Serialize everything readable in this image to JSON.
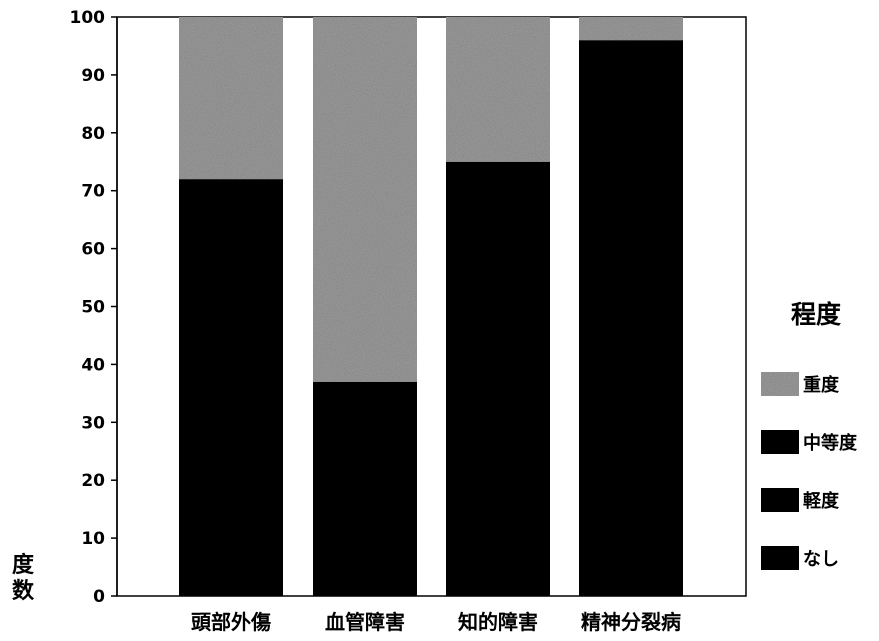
{
  "chart_data": {
    "type": "bar",
    "stacked": true,
    "categories": [
      "頭部外傷",
      "血管障害",
      "知的障害",
      "精神分裂病"
    ],
    "series": [
      {
        "name": "なし",
        "values": [
          0,
          0,
          0,
          0
        ],
        "color": "#050505"
      },
      {
        "name": "軽度",
        "values": [
          0,
          0,
          0,
          0
        ],
        "color": "#080808"
      },
      {
        "name": "中等度",
        "values": [
          72,
          37,
          75,
          96
        ],
        "color": "#0a0a0a"
      },
      {
        "name": "重度",
        "values": [
          28,
          63,
          25,
          4
        ],
        "color": "#9e9e9e"
      }
    ],
    "ylabel": "度数",
    "ylim": [
      0,
      100
    ],
    "yticks": [
      "0",
      "10",
      "20",
      "30",
      "40",
      "50",
      "60",
      "70",
      "80",
      "90",
      "100"
    ],
    "legend_title": "程度",
    "legend_order": [
      "重度",
      "中等度",
      "軽度",
      "なし"
    ],
    "legend_position": "right",
    "grid": false
  }
}
